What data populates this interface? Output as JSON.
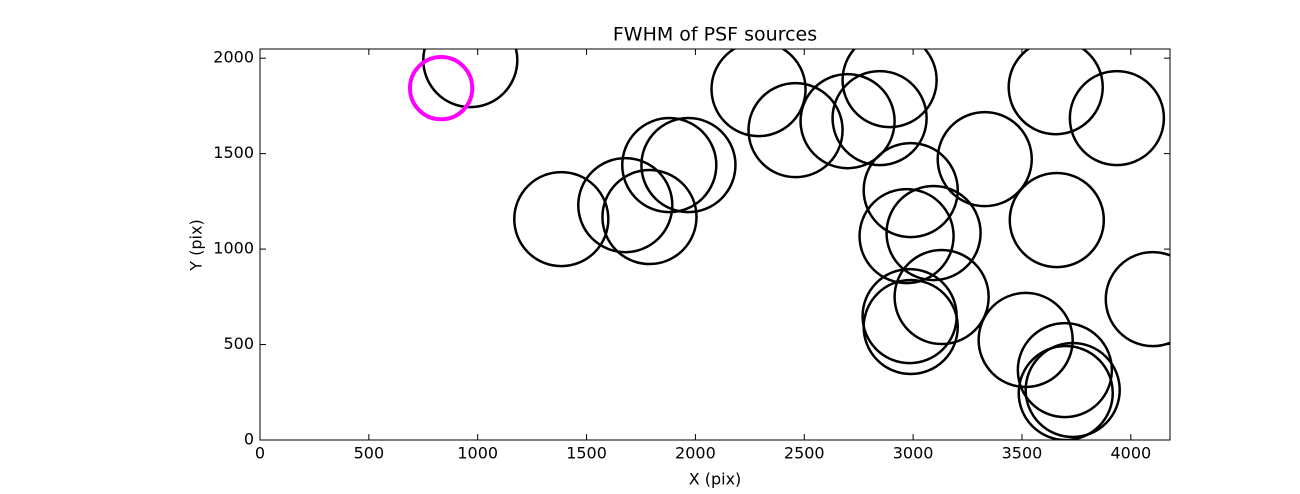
{
  "chart_data": {
    "type": "scatter",
    "title": "FWHM of PSF sources",
    "xlabel": "X (pix)",
    "ylabel": "Y (pix)",
    "xlim": [
      0,
      4180
    ],
    "ylim": [
      0,
      2048
    ],
    "xticks": [
      0,
      500,
      1000,
      1500,
      2000,
      2500,
      3000,
      3500,
      4000
    ],
    "yticks": [
      0,
      500,
      1000,
      1500,
      2000
    ],
    "series": [
      {
        "color": "#000000",
        "x": [
          966,
          1384,
          1678,
          1789,
          1880,
          1968,
          2290,
          2460,
          2699,
          2846,
          2892,
          2989,
          2970,
          3094,
          3329,
          3655,
          3936,
          3660,
          4101,
          3131,
          2984,
          2989,
          3517,
          3697,
          3733,
          3701
        ],
        "values": [
          1990,
          1157,
          1230,
          1168,
          1440,
          1440,
          1838,
          1623,
          1670,
          1686,
          1885,
          1309,
          1068,
          1084,
          1471,
          1848,
          1686,
          1152,
          738,
          749,
          649,
          592,
          524,
          366,
          262,
          246
        ],
        "sizes": [
          216,
          216,
          216,
          216,
          216,
          216,
          216,
          216,
          216,
          216,
          216,
          216,
          216,
          216,
          216,
          216,
          216,
          216,
          216,
          216,
          216,
          216,
          216,
          216,
          216,
          216
        ]
      },
      {
        "color": "#ff00ff",
        "x": [
          832
        ],
        "values": [
          1843
        ],
        "sizes": [
          143
        ]
      }
    ]
  }
}
